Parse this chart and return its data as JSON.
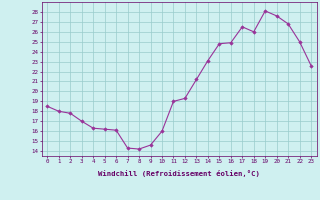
{
  "x": [
    0,
    1,
    2,
    3,
    4,
    5,
    6,
    7,
    8,
    9,
    10,
    11,
    12,
    13,
    14,
    15,
    16,
    17,
    18,
    19,
    20,
    21,
    22,
    23
  ],
  "y": [
    18.5,
    18.0,
    17.8,
    17.0,
    16.3,
    16.2,
    16.1,
    14.3,
    14.2,
    14.6,
    16.0,
    19.0,
    19.3,
    21.2,
    23.1,
    24.8,
    24.9,
    26.5,
    26.0,
    28.1,
    27.6,
    26.8,
    25.0,
    22.6
  ],
  "line_color": "#993399",
  "marker": "D",
  "marker_size": 1.8,
  "bg_color": "#cff0f0",
  "grid_color": "#99cccc",
  "axis_label": "Windchill (Refroidissement éolien,°C)",
  "yticks": [
    14,
    15,
    16,
    17,
    18,
    19,
    20,
    21,
    22,
    23,
    24,
    25,
    26,
    27,
    28
  ],
  "ylim": [
    13.5,
    29.0
  ],
  "xlim": [
    -0.5,
    23.5
  ],
  "tick_label_color": "#660066",
  "label_color": "#660066",
  "linewidth": 0.8,
  "tick_fontsize": 4.2,
  "label_fontsize": 5.2
}
